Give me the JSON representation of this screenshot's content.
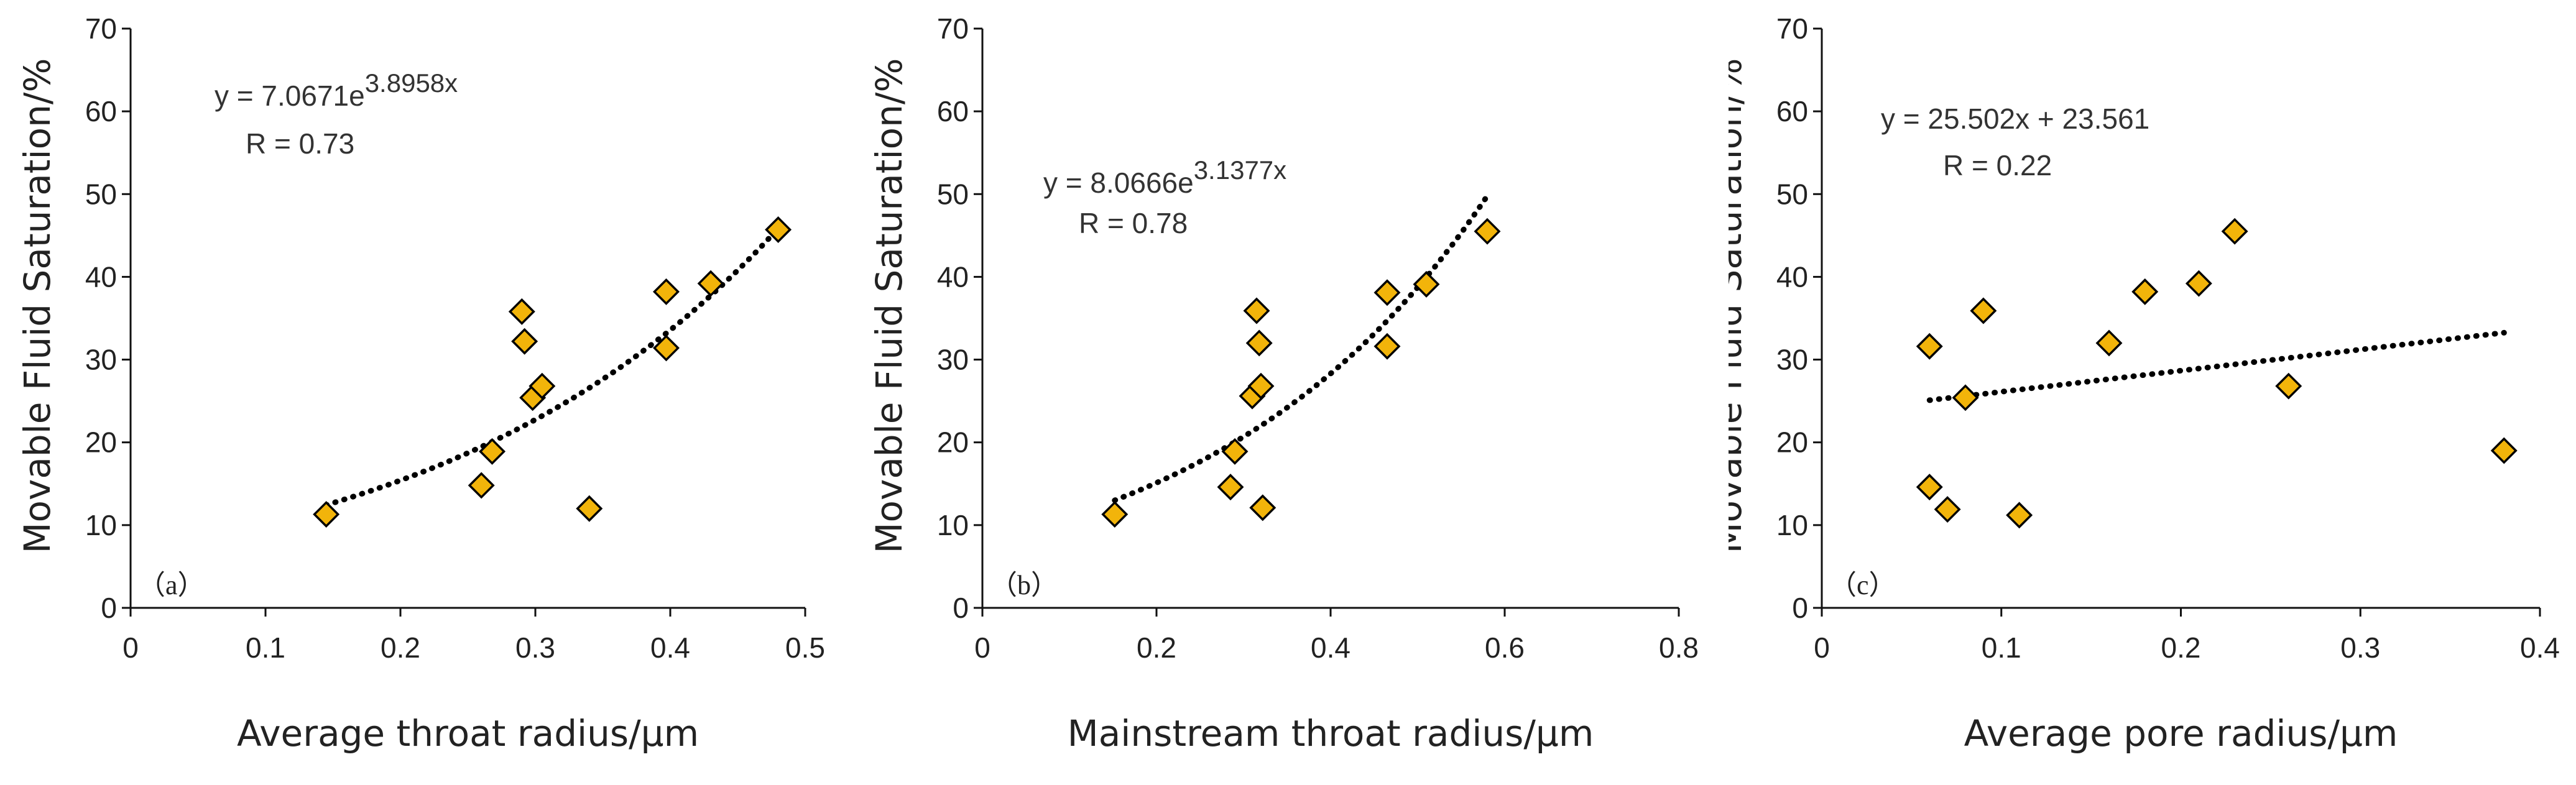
{
  "figure": {
    "panels": [
      {
        "id": "a",
        "panel_label": "（a）",
        "equation": "y = 7.0671e",
        "exponent": "3.8958x",
        "r_value": "R = 0.73"
      },
      {
        "id": "b",
        "panel_label": "（b）",
        "equation": "y = 8.0666e",
        "exponent": "3.1377x",
        "r_value": "R  = 0.78"
      },
      {
        "id": "c",
        "panel_label": "（c）",
        "equation": "y = 25.502x + 23.561",
        "exponent": "",
        "r_value": "R = 0.22"
      }
    ],
    "colors": {
      "marker_fill": "#f2b40a",
      "marker_stroke": "#000000",
      "axis": "#111111",
      "trendline": "#000000"
    },
    "marker_shape": "diamond"
  },
  "chart_data": [
    {
      "type": "scatter",
      "title": "",
      "xlabel": "Average throat radius/μm",
      "ylabel": "Movable Fluid Saturation/%",
      "xlim": [
        0,
        0.5
      ],
      "ylim": [
        0,
        70
      ],
      "xticks": [
        0,
        0.1,
        0.2,
        0.3,
        0.4,
        0.5
      ],
      "xtick_labels": [
        "0",
        "0.1",
        "0.2",
        "0.3",
        "0.4",
        "0.5"
      ],
      "yticks": [
        0,
        10,
        20,
        30,
        40,
        50,
        60,
        70
      ],
      "ytick_labels": [
        "0",
        "10",
        "20",
        "30",
        "40",
        "50",
        "60",
        "70"
      ],
      "grid": false,
      "points": [
        {
          "x": 0.145,
          "y": 11.3
        },
        {
          "x": 0.26,
          "y": 14.8
        },
        {
          "x": 0.268,
          "y": 18.9
        },
        {
          "x": 0.29,
          "y": 35.8
        },
        {
          "x": 0.292,
          "y": 32.2
        },
        {
          "x": 0.298,
          "y": 25.4
        },
        {
          "x": 0.305,
          "y": 26.8
        },
        {
          "x": 0.34,
          "y": 12.0
        },
        {
          "x": 0.397,
          "y": 38.2
        },
        {
          "x": 0.397,
          "y": 31.4
        },
        {
          "x": 0.43,
          "y": 39.2
        },
        {
          "x": 0.48,
          "y": 45.7
        }
      ],
      "trendline": {
        "kind": "exponential",
        "a": 7.0671,
        "b": 3.8958,
        "x_range": [
          0.145,
          0.48
        ]
      }
    },
    {
      "type": "scatter",
      "title": "",
      "xlabel": "Mainstream throat radius/μm",
      "ylabel": "Movable Fluid Saturation/%",
      "xlim": [
        0,
        0.8
      ],
      "ylim": [
        0,
        70
      ],
      "xticks": [
        0,
        0.2,
        0.4,
        0.6,
        0.8
      ],
      "xtick_labels": [
        "0",
        "0.2",
        "0.4",
        "0.6",
        "0.8"
      ],
      "yticks": [
        0,
        10,
        20,
        30,
        40,
        50,
        60,
        70
      ],
      "ytick_labels": [
        "0",
        "10",
        "20",
        "30",
        "40",
        "50",
        "60",
        "70"
      ],
      "grid": false,
      "points": [
        {
          "x": 0.152,
          "y": 11.3
        },
        {
          "x": 0.285,
          "y": 14.6
        },
        {
          "x": 0.29,
          "y": 18.9
        },
        {
          "x": 0.31,
          "y": 25.6
        },
        {
          "x": 0.315,
          "y": 35.9
        },
        {
          "x": 0.318,
          "y": 32.0
        },
        {
          "x": 0.32,
          "y": 26.8
        },
        {
          "x": 0.322,
          "y": 12.1
        },
        {
          "x": 0.465,
          "y": 38.1
        },
        {
          "x": 0.465,
          "y": 31.6
        },
        {
          "x": 0.51,
          "y": 39.1
        },
        {
          "x": 0.58,
          "y": 45.5
        }
      ],
      "trendline": {
        "kind": "exponential",
        "a": 8.0666,
        "b": 3.1377,
        "x_range": [
          0.152,
          0.58
        ]
      }
    },
    {
      "type": "scatter",
      "title": "",
      "xlabel": "Average pore radius/μm",
      "ylabel": "Movable Fluid Saturation/%",
      "xlim": [
        0,
        0.4
      ],
      "ylim": [
        0,
        70
      ],
      "xticks": [
        0,
        0.1,
        0.2,
        0.3,
        0.4
      ],
      "xtick_labels": [
        "0",
        "0.1",
        "0.2",
        "0.3",
        "0.4"
      ],
      "yticks": [
        0,
        10,
        20,
        30,
        40,
        50,
        60,
        70
      ],
      "ytick_labels": [
        "0",
        "10",
        "20",
        "30",
        "40",
        "50",
        "60",
        "70"
      ],
      "grid": false,
      "points": [
        {
          "x": 0.06,
          "y": 31.6
        },
        {
          "x": 0.06,
          "y": 14.6
        },
        {
          "x": 0.07,
          "y": 11.9
        },
        {
          "x": 0.08,
          "y": 25.4
        },
        {
          "x": 0.09,
          "y": 35.9
        },
        {
          "x": 0.11,
          "y": 11.2
        },
        {
          "x": 0.16,
          "y": 32.0
        },
        {
          "x": 0.18,
          "y": 38.2
        },
        {
          "x": 0.21,
          "y": 39.2
        },
        {
          "x": 0.23,
          "y": 45.5
        },
        {
          "x": 0.26,
          "y": 26.8
        },
        {
          "x": 0.38,
          "y": 19.0
        }
      ],
      "trendline": {
        "kind": "linear",
        "slope": 25.502,
        "intercept": 23.561,
        "x_range": [
          0.06,
          0.38
        ]
      }
    }
  ]
}
